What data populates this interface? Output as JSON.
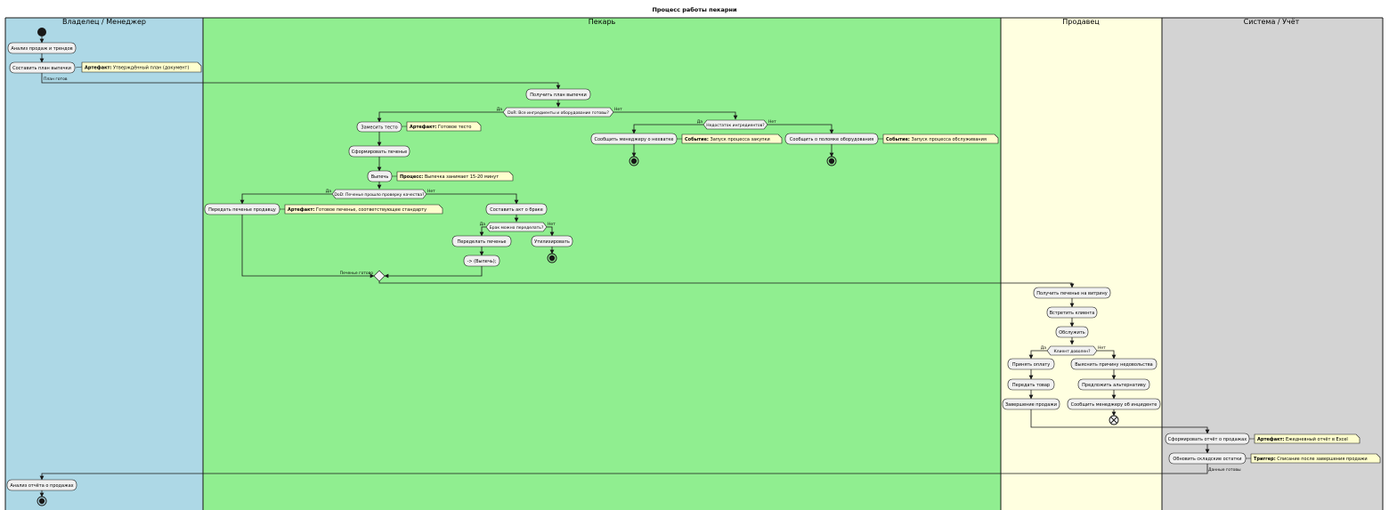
{
  "title": "Процесс работы пекарни",
  "colors": {
    "lane_owner": "#add8e6",
    "lane_baker": "#90ee90",
    "lane_seller": "#ffffe0",
    "lane_system": "#d3d3d3",
    "activity_fill": "#f1f1f1",
    "note_fill": "#fefece",
    "line": "#181818"
  },
  "lanes": [
    {
      "name": "Владелец / Менеджер"
    },
    {
      "name": "Пекарь"
    },
    {
      "name": "Продавец"
    },
    {
      "name": "Система / Учёт"
    }
  ],
  "activities": [
    {
      "id": "a1",
      "text": "Анализ продаж и трендов"
    },
    {
      "id": "a2",
      "text": "Составить план выпечки"
    },
    {
      "id": "b1",
      "text": "Получить план выпечки"
    },
    {
      "id": "b2",
      "text": "Замесить тесто"
    },
    {
      "id": "b3",
      "text": "Сформировать печенье"
    },
    {
      "id": "b4",
      "text": "Выпечь"
    },
    {
      "id": "b5",
      "text": "Передать печенье продавцу"
    },
    {
      "id": "b6",
      "text": "Составить акт о браке"
    },
    {
      "id": "b7",
      "text": "Переделать печенье"
    },
    {
      "id": "b8",
      "text": "-> (Выпечь);"
    },
    {
      "id": "b9",
      "text": "Утилизировать"
    },
    {
      "id": "b10",
      "text": "Сообщить менеджеру о нехватке"
    },
    {
      "id": "b11",
      "text": "Сообщить о поломке оборудования"
    },
    {
      "id": "c1",
      "text": "Получить печенье на витрину"
    },
    {
      "id": "c2",
      "text": "Встретить клиента"
    },
    {
      "id": "c3",
      "text": "Обслужить"
    },
    {
      "id": "c4",
      "text": "Принять оплату"
    },
    {
      "id": "c5",
      "text": "Передать товар"
    },
    {
      "id": "c6",
      "text": "Завершение продажи"
    },
    {
      "id": "c7",
      "text": "Выяснить причину недовольства"
    },
    {
      "id": "c8",
      "text": "Предложить альтернативу"
    },
    {
      "id": "c9",
      "text": "Сообщить менеджеру об инциденте"
    },
    {
      "id": "d1",
      "text": "Сформировать отчёт о продажах"
    },
    {
      "id": "d2",
      "text": "Обновить складские остатки"
    },
    {
      "id": "a3",
      "text": "Анализ отчёта о продажах"
    }
  ],
  "notes": [
    {
      "id": "n1",
      "bold": "Артефакт:",
      "text": " Утверждённый план (документ)"
    },
    {
      "id": "n2",
      "bold": "Артефакт:",
      "text": " Готовое тесто"
    },
    {
      "id": "n3",
      "bold": "Процесс:",
      "text": " Выпечка занимает 15-20 минут"
    },
    {
      "id": "n4",
      "bold": "Артефакт:",
      "text": " Готовое печенье, соответствующее стандарту"
    },
    {
      "id": "n5",
      "bold": "Событие:",
      "text": " Запуск процесса закупки"
    },
    {
      "id": "n6",
      "bold": "Событие:",
      "text": " Запуск процесса обслуживания"
    },
    {
      "id": "n7",
      "bold": "Артефакт:",
      "text": " Ежедневный отчёт в Excel"
    },
    {
      "id": "n8",
      "bold": "Триггер:",
      "text": " Списание после завершения продажи"
    }
  ],
  "decisions": [
    {
      "id": "q1",
      "text": "DoR: Все ингредиенты и оборудование готовы?",
      "yes": "Да",
      "no": "Нет"
    },
    {
      "id": "q2",
      "text": "Недостаток ингредиентов?",
      "yes": "Да",
      "no": "Нет"
    },
    {
      "id": "q3",
      "text": "DoD: Печенье прошло проверку качества?",
      "yes": "Да",
      "no": "Нет"
    },
    {
      "id": "q4",
      "text": "Брак можно переделать?",
      "yes": "Да",
      "no": "Нет"
    },
    {
      "id": "q5",
      "text": "Клиент доволен?",
      "yes": "Да",
      "no": "Нет"
    }
  ],
  "edge_labels": [
    {
      "id": "e1",
      "text": "План готов"
    },
    {
      "id": "e2",
      "text": "Печенье готово"
    },
    {
      "id": "e3",
      "text": "Данные готовы"
    }
  ]
}
